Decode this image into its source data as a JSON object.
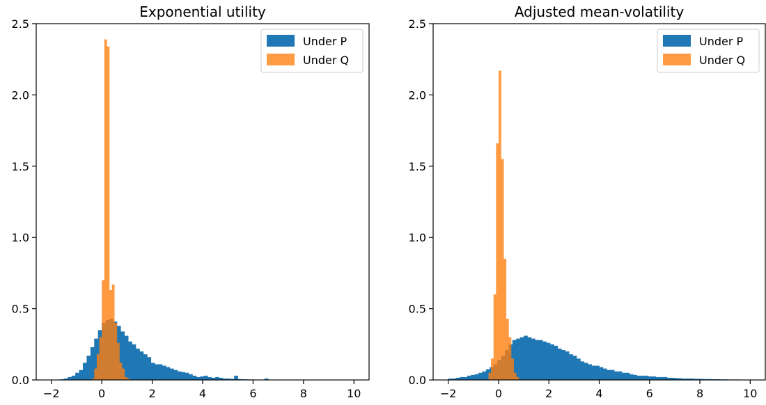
{
  "chart_data": [
    {
      "type": "bar",
      "title": "Exponential utility",
      "xlabel": "",
      "ylabel": "",
      "xlim": [
        -2.6,
        10.6
      ],
      "ylim": [
        0,
        2.5
      ],
      "xticks": [
        -2,
        0,
        2,
        4,
        6,
        8,
        10
      ],
      "yticks": [
        0.0,
        0.5,
        1.0,
        1.5,
        2.0,
        2.5
      ],
      "xtick_labels": [
        "−2",
        "0",
        "2",
        "4",
        "6",
        "8",
        "10"
      ],
      "ytick_labels": [
        "0.0",
        "0.5",
        "1.0",
        "1.5",
        "2.0",
        "2.5"
      ],
      "grid": false,
      "legend_position": "top-right",
      "series": [
        {
          "name": "Under P",
          "color": "#1f77b4",
          "opacity": 1.0,
          "bin_width": 0.15,
          "bin_edges_start": -1.8,
          "heights": [
            0.002,
            0.005,
            0.01,
            0.02,
            0.03,
            0.05,
            0.07,
            0.12,
            0.17,
            0.23,
            0.29,
            0.35,
            0.4,
            0.42,
            0.43,
            0.41,
            0.38,
            0.34,
            0.31,
            0.27,
            0.25,
            0.22,
            0.2,
            0.18,
            0.16,
            0.12,
            0.11,
            0.11,
            0.1,
            0.09,
            0.08,
            0.07,
            0.06,
            0.055,
            0.05,
            0.04,
            0.03,
            0.02,
            0.025,
            0.03,
            0.02,
            0.015,
            0.02,
            0.015,
            0.01,
            0.01,
            0.008,
            0.03,
            0.006,
            0.005,
            0.004,
            0.003,
            0.003,
            0.002,
            0.002,
            0.01,
            0.002,
            0.001,
            0.001,
            0.001,
            0.001,
            0.001,
            0.001,
            0.001,
            0.001,
            0.0,
            0.0,
            0.0,
            0.0,
            0.0,
            0.0,
            0.0,
            0.0,
            0.0,
            0.0,
            0.0,
            0.0,
            0.0
          ]
        },
        {
          "name": "Under Q",
          "color": "#ff7f0e",
          "opacity": 0.78,
          "bin_width": 0.1,
          "bin_edges_start": -0.4,
          "heights": [
            0.01,
            0.08,
            0.18,
            0.3,
            0.7,
            2.39,
            2.34,
            0.63,
            0.67,
            0.4,
            0.26,
            0.12,
            0.08,
            0.02,
            0.01
          ]
        }
      ]
    },
    {
      "type": "bar",
      "title": "Adjusted mean-volatility",
      "xlabel": "",
      "ylabel": "",
      "xlim": [
        -2.6,
        10.6
      ],
      "ylim": [
        0,
        2.5
      ],
      "xticks": [
        -2,
        0,
        2,
        4,
        6,
        8,
        10
      ],
      "yticks": [
        0.0,
        0.5,
        1.0,
        1.5,
        2.0,
        2.5
      ],
      "xtick_labels": [
        "−2",
        "0",
        "2",
        "4",
        "6",
        "8",
        "10"
      ],
      "ytick_labels": [
        "0.0",
        "0.5",
        "1.0",
        "1.5",
        "2.0",
        "2.5"
      ],
      "grid": false,
      "legend_position": "top-right",
      "series": [
        {
          "name": "Under P",
          "color": "#1f77b4",
          "opacity": 1.0,
          "bin_width": 0.15,
          "bin_edges_start": -2.0,
          "heights": [
            0.01,
            0.01,
            0.015,
            0.02,
            0.02,
            0.03,
            0.035,
            0.04,
            0.05,
            0.06,
            0.075,
            0.09,
            0.11,
            0.14,
            0.17,
            0.21,
            0.25,
            0.28,
            0.29,
            0.3,
            0.31,
            0.3,
            0.29,
            0.28,
            0.28,
            0.27,
            0.26,
            0.25,
            0.24,
            0.22,
            0.21,
            0.2,
            0.18,
            0.17,
            0.15,
            0.13,
            0.12,
            0.11,
            0.1,
            0.1,
            0.09,
            0.08,
            0.07,
            0.07,
            0.06,
            0.06,
            0.05,
            0.05,
            0.04,
            0.035,
            0.03,
            0.03,
            0.03,
            0.025,
            0.025,
            0.02,
            0.02,
            0.02,
            0.015,
            0.015,
            0.013,
            0.012,
            0.01,
            0.01,
            0.01,
            0.008,
            0.008,
            0.007,
            0.006,
            0.006,
            0.005,
            0.005,
            0.004,
            0.004,
            0.003,
            0.003,
            0.003,
            0.002,
            0.002,
            0.002
          ]
        },
        {
          "name": "Under Q",
          "color": "#ff7f0e",
          "opacity": 0.78,
          "bin_width": 0.1,
          "bin_edges_start": -0.4,
          "heights": [
            0.05,
            0.15,
            0.6,
            1.66,
            2.17,
            1.55,
            0.85,
            0.43,
            0.3,
            0.15,
            0.05,
            0.02
          ]
        }
      ]
    }
  ]
}
